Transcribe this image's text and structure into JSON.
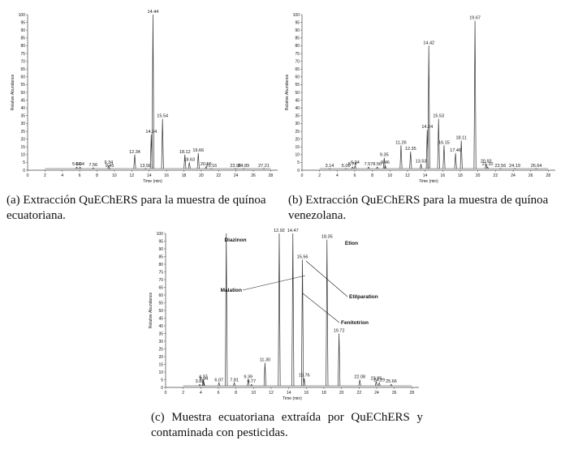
{
  "chart_data": [
    {
      "type": "chromatogram",
      "y_label": "Relative Abundance",
      "x_label": "Time (min)",
      "color": "#333333",
      "x": [
        5.66,
        6.04,
        7.56,
        9.34,
        9.45,
        12.34,
        13.58,
        14.24,
        14.44,
        15.54,
        18.12,
        18.63,
        19.66,
        20.55,
        21.16,
        23.96,
        24.89,
        27.21
      ],
      "values": [
        2,
        2,
        1.5,
        3,
        1,
        10,
        1,
        23,
        100,
        33,
        10,
        5,
        11,
        2,
        1,
        1,
        1,
        1
      ],
      "peak_labels": [
        "5.66",
        "6.04",
        "7.56",
        "9.34",
        "9.45",
        "12.34",
        "13.58",
        "14.24",
        "14.44",
        "15.54",
        "18.12",
        "18.63",
        "19.66",
        "20.55",
        "21.16",
        "23.96",
        "24.89",
        "27.21"
      ],
      "xlim": [
        0,
        28.8
      ],
      "xticks": [
        0,
        2,
        4,
        6,
        8,
        10,
        12,
        14,
        16,
        18,
        20,
        22,
        24,
        26,
        28
      ],
      "ylim": [
        0,
        100
      ],
      "yticks": [
        0,
        5,
        10,
        15,
        20,
        25,
        30,
        35,
        40,
        45,
        50,
        55,
        60,
        65,
        70,
        75,
        80,
        85,
        90,
        95,
        100
      ]
    },
    {
      "type": "chromatogram",
      "y_label": "Relative Abundance",
      "x_label": "Time (min)",
      "color": "#333333",
      "x": [
        3.14,
        5.0,
        5.74,
        6.04,
        7.57,
        8.56,
        9.35,
        9.46,
        11.26,
        12.35,
        13.53,
        14.24,
        14.42,
        15.53,
        16.15,
        17.46,
        18.11,
        19.67,
        20.93,
        21.1,
        22.56,
        24.19,
        26.64
      ],
      "values": [
        1,
        1,
        2,
        3,
        2,
        2,
        8,
        3,
        16,
        12,
        4,
        26,
        80,
        33,
        16,
        11,
        19,
        96,
        4,
        2,
        1,
        1,
        1
      ],
      "peak_labels": [
        "3.14",
        "5.00",
        "5.74",
        "6.04",
        "7.57",
        "8.56",
        "9.35",
        "9.46",
        "11.26",
        "12.35",
        "13.53",
        "14.24",
        "14.42",
        "15.53",
        "16.15",
        "17.46",
        "18.11",
        "19.67",
        "20.93",
        "21.10",
        "22.56",
        "24.19",
        "26.64"
      ],
      "xlim": [
        0,
        28.8
      ],
      "xticks": [
        0,
        2,
        4,
        6,
        8,
        10,
        12,
        14,
        16,
        18,
        20,
        22,
        24,
        26,
        28
      ],
      "ylim": [
        0,
        100
      ],
      "yticks": [
        0,
        5,
        10,
        15,
        20,
        25,
        30,
        35,
        40,
        45,
        50,
        55,
        60,
        65,
        70,
        75,
        80,
        85,
        90,
        95,
        100
      ]
    },
    {
      "type": "chromatogram",
      "y_label": "Relative Abundance",
      "x_label": "Time (min)",
      "color": "#333333",
      "x": [
        3.88,
        4.27,
        4.34,
        6.07,
        6.9,
        7.81,
        9.39,
        9.77,
        11.3,
        12.92,
        14.47,
        15.56,
        15.76,
        18.35,
        19.72,
        22.08,
        23.95,
        24.29,
        25.66
      ],
      "values": [
        2,
        5,
        4,
        3,
        100,
        3,
        5,
        2,
        16,
        100,
        100,
        83,
        6,
        96,
        35,
        5,
        4,
        3,
        2
      ],
      "peak_labels": [
        "3.88",
        "4.27",
        "4.34",
        "6.07",
        null,
        "7.81",
        "9.39",
        "9.77",
        "11.30",
        "12.92",
        "14.47",
        "15.56",
        "15.76",
        "18.35",
        "19.72",
        "22.08",
        "23.95",
        "24.29",
        "25.66"
      ],
      "annotations": [
        "Diazinon",
        "Malation",
        "Etilparation",
        "Fenitotrion",
        "Etion"
      ],
      "xlim": [
        0,
        28.8
      ],
      "xticks": [
        0,
        2,
        4,
        6,
        8,
        10,
        12,
        14,
        16,
        18,
        20,
        22,
        24,
        26,
        28
      ],
      "ylim": [
        0,
        100
      ],
      "yticks": [
        0,
        5,
        10,
        15,
        20,
        25,
        30,
        35,
        40,
        45,
        50,
        55,
        60,
        65,
        70,
        75,
        80,
        85,
        90,
        95,
        100
      ]
    }
  ],
  "captions": [
    "(a) Extracción QuEChERS para la muestra de quínoa ecuatoriana.",
    "(b) Extracción QuEChERS para la muestra de quínoa venezolana.",
    "(c) Muestra ecuatoriana extraída por QuEChERS y contaminada con pesticidas."
  ]
}
